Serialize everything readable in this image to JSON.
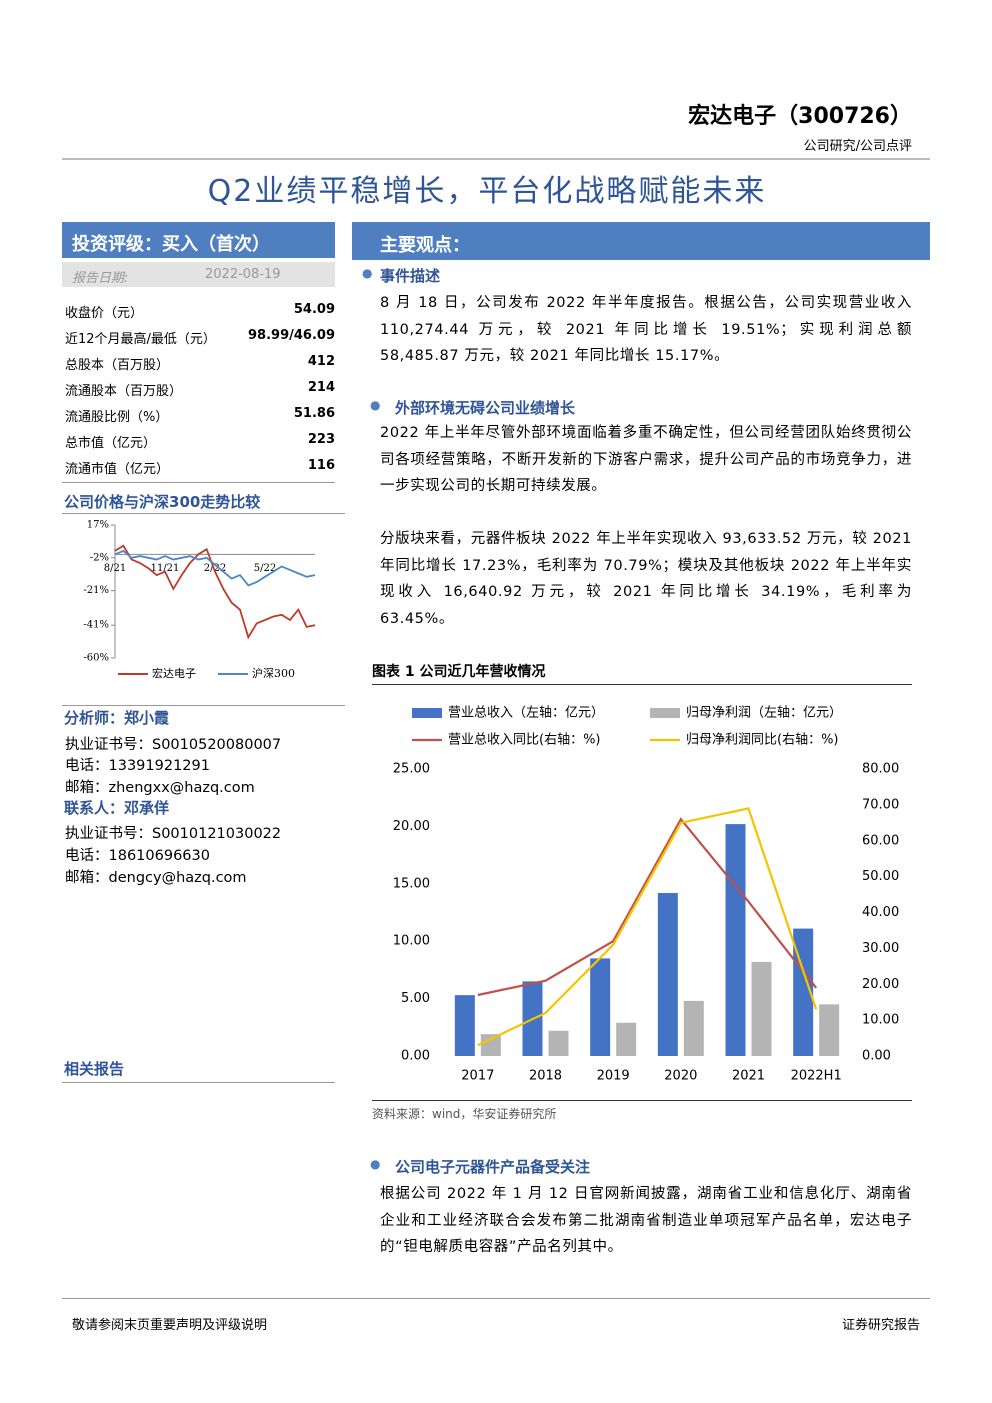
{
  "header": {
    "company": "宏达电子（300726）",
    "category": "公司研究/公司点评",
    "title": "Q2业绩平稳增长，平台化战略赋能未来"
  },
  "rating": {
    "label": "投资评级：买入（首次）",
    "date_label": "报告日期:",
    "date": "2022-08-19"
  },
  "stats": [
    [
      "收盘价（元）",
      "54.09"
    ],
    [
      "近12个月最高/最低（元）",
      "98.99/46.09"
    ],
    [
      "总股本（百万股）",
      "412"
    ],
    [
      "流通股本（百万股）",
      "214"
    ],
    [
      "流通股比例（%）",
      "51.86"
    ],
    [
      "总市值（亿元）",
      "223"
    ],
    [
      "流通市值（亿元）",
      "116"
    ]
  ],
  "price_title": "公司价格与沪深300走势比较",
  "analyst": {
    "title": "分析师：郑小霞",
    "lines": [
      "执业证书号：S0010520080007",
      "电话：13391921291",
      "邮箱：zhengxx@hazq.com"
    ],
    "contact_title": "联系人：邓承佯",
    "contact_lines": [
      "执业证书号：S0010121030022",
      "电话：18610696630",
      "邮箱：dengcy@hazq.com"
    ]
  },
  "related": "相关报告",
  "summary": {
    "heading": "主要观点：",
    "sections": [
      {
        "title": "事件描述",
        "paragraphs": [
          "8 月 18 日，公司发布 2022 年半年度报告。根据公告，公司实现营业收入 110,274.44 万元，较 2021 年同比增长 19.51%；实现利润总额 58,485.87 万元，较 2021 年同比增长 15.17%。"
        ]
      },
      {
        "title": "外部环境无碍公司业绩增长",
        "paragraphs": [
          "2022 年上半年尽管外部环境面临着多重不确定性，但公司经营团队始终贯彻公司各项经营策略，不断开发新的下游客户需求，提升公司产品的市场竞争力，进一步实现公司的长期可持续发展。",
          "分版块来看，元器件板块 2022 年上半年实现收入 93,633.52 万元，较 2021 年同比增长 17.23%，毛利率为 70.79%；模块及其他板块 2022 年上半年实现收入 16,640.92 万元，较 2021 年同比增长 34.19%，毛利率为 63.45%。"
        ]
      },
      {
        "title": "公司电子元器件产品备受关注",
        "paragraphs": [
          "根据公司 2022 年 1 月 12 日官网新闻披露，湖南省工业和信息化厅、湖南省企业和工业经济联合会发布第二批湖南省制造业单项冠军产品名单，宏达电子的“钽电解质电容器”产品名列其中。"
        ]
      }
    ]
  },
  "figure": {
    "title": "图表 1 公司近几年营收情况",
    "source": "资料来源：wind，华安证券研究所"
  },
  "footer": {
    "left": "敬请参阅末页重要声明及评级说明",
    "right": "证券研究报告"
  },
  "chart_data": [
    {
      "type": "line",
      "categories": [
        "8/21",
        null,
        null,
        null,
        null,
        null,
        "11/21",
        null,
        null,
        null,
        null,
        null,
        "2/22",
        null,
        null,
        null,
        null,
        null,
        "5/22",
        null,
        null,
        null,
        null,
        null,
        null
      ],
      "series": [
        {
          "name": "宏达电子",
          "color": "#c0392b",
          "values": [
            2,
            5,
            -3,
            -5,
            -8,
            -12,
            -10,
            -20,
            -12,
            -5,
            0,
            3,
            -10,
            -20,
            -28,
            -32,
            -48,
            -40,
            -38,
            -36,
            -35,
            -38,
            -32,
            -42,
            -41
          ]
        },
        {
          "name": "沪深300",
          "color": "#4a86c8",
          "values": [
            0,
            2,
            -2,
            -1,
            -2,
            -3,
            -1,
            -3,
            -2,
            -1,
            -3,
            -2,
            -6,
            -10,
            -14,
            -12,
            -18,
            -16,
            -13,
            -10,
            -7,
            -9,
            -11,
            -13,
            -12
          ]
        }
      ],
      "ylim": [
        -60,
        17
      ],
      "yticks": [
        {
          "value": 17,
          "label": "17%"
        },
        {
          "value": -2,
          "label": "-2%"
        },
        {
          "value": -21,
          "label": "-21%"
        },
        {
          "value": -41,
          "label": "-41%"
        },
        {
          "value": -60,
          "label": "-60%"
        }
      ]
    },
    {
      "type": "bar",
      "categories": [
        "2017",
        "2018",
        "2019",
        "2020",
        "2021",
        "2022H1"
      ],
      "series": [
        {
          "name": "营业总收入（左轴：亿元）",
          "color": "#4472c4",
          "values": [
            5.3,
            6.5,
            8.5,
            14.2,
            20.2,
            11.1
          ]
        },
        {
          "name": "归母净利润（左轴：亿元）",
          "color": "#b4b4b4",
          "values": [
            1.9,
            2.2,
            2.9,
            4.8,
            8.2,
            4.5
          ]
        },
        {
          "name": "营业总收入同比(右轴：%)",
          "color": "#c0504d",
          "type": "line",
          "axis": "y2",
          "values": [
            17,
            21,
            32,
            66,
            43,
            19
          ]
        },
        {
          "name": "归母净利润同比(右轴：%)",
          "color": "#f5c400",
          "type": "line",
          "axis": "y2",
          "values": [
            3,
            12,
            31,
            65,
            69,
            13
          ]
        }
      ],
      "ylim": [
        0,
        25
      ],
      "yticks": [
        {
          "value": 0,
          "label": "0.00"
        },
        {
          "value": 5,
          "label": "5.00"
        },
        {
          "value": 10,
          "label": "10.00"
        },
        {
          "value": 15,
          "label": "15.00"
        },
        {
          "value": 20,
          "label": "20.00"
        },
        {
          "value": 25,
          "label": "25.00"
        }
      ],
      "y2lim": [
        0,
        80
      ],
      "y2ticks": [
        {
          "value": 0,
          "label": "0.00"
        },
        {
          "value": 10,
          "label": "10.00"
        },
        {
          "value": 20,
          "label": "20.00"
        },
        {
          "value": 30,
          "label": "30.00"
        },
        {
          "value": 40,
          "label": "40.00"
        },
        {
          "value": 50,
          "label": "50.00"
        },
        {
          "value": 60,
          "label": "60.00"
        },
        {
          "value": 70,
          "label": "70.00"
        },
        {
          "value": 80,
          "label": "80.00"
        }
      ]
    }
  ]
}
